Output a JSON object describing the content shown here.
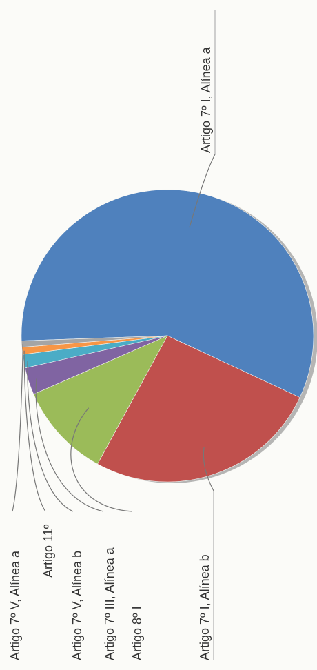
{
  "chart_data": {
    "type": "pie",
    "title": "",
    "legend": "none",
    "slices": [
      {
        "label": "Artigo 7º I, Alínea a",
        "value": 57.5,
        "color": "#4f81bd"
      },
      {
        "label": "Artigo 7º I, Alínea b",
        "value": 26.0,
        "color": "#c0504d"
      },
      {
        "label": "Artigo 8º I",
        "value": 10.5,
        "color": "#9bbb59"
      },
      {
        "label": "Artigo 7º III, Alínea a",
        "value": 3.0,
        "color": "#8064a2"
      },
      {
        "label": "Artigo 7º V, Alínea b",
        "value": 1.5,
        "color": "#4bacc6"
      },
      {
        "label": "Artigo 11º",
        "value": 0.8,
        "color": "#f79646"
      },
      {
        "label": "Artigo 7º V, Alínea a",
        "value": 0.7,
        "color": "#a5a5a5"
      }
    ]
  }
}
